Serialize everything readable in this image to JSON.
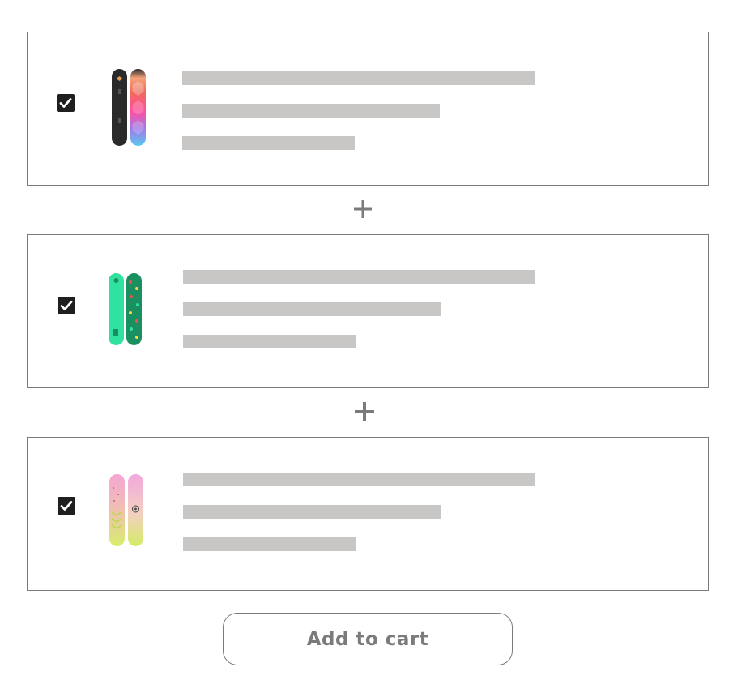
{
  "bundle": {
    "items": [
      {
        "checked": true,
        "image": "snowboard-black-and-gradient-icon",
        "colors": [
          "#2a2a2a",
          "#f06a5a",
          "#ff4fa0",
          "#5ab8f0"
        ]
      },
      {
        "checked": true,
        "image": "snowboard-green-pattern-icon",
        "colors": [
          "#2fe2a0",
          "#1a8f60"
        ]
      },
      {
        "checked": true,
        "image": "snowboard-pink-yellow-icon",
        "colors": [
          "#f5a5d5",
          "#d8ee6a"
        ]
      }
    ],
    "separator_icon": "plus-icon",
    "add_to_cart_label": "Add to cart"
  },
  "colors": {
    "placeholder": "#c9c7c6",
    "border": "#7a7a7a",
    "checkbox": "#1f1f1f",
    "button_text": "#7b7b7b"
  }
}
